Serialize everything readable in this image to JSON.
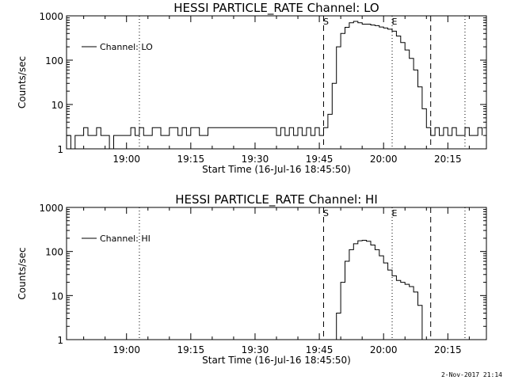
{
  "footer_timestamp": "2-Nov-2017 21:14",
  "chart_data": [
    {
      "type": "line",
      "title": "HESSI PARTICLE_RATE Channel: LO",
      "xlabel": "Start Time (16-Jul-16 18:45:50)",
      "ylabel": "Counts/sec",
      "yscale": "log",
      "ylim": [
        1,
        1000
      ],
      "xlim": [
        "18:46",
        "20:24"
      ],
      "xticks": [
        "19:00",
        "19:15",
        "19:30",
        "19:45",
        "20:00",
        "20:15"
      ],
      "yticks": [
        "1",
        "10",
        "100",
        "1000"
      ],
      "legend": {
        "label": "Channel: LO",
        "position": "top-left"
      },
      "markers": [
        {
          "label": "S",
          "time": "19:46",
          "style": "dashed"
        },
        {
          "label": "E",
          "time": "20:02",
          "style": "dotted"
        },
        {
          "time": "20:11",
          "style": "dashed"
        },
        {
          "time": "19:03",
          "style": "dotted"
        },
        {
          "time": "20:19",
          "style": "dotted"
        }
      ],
      "series": [
        {
          "name": "Channel: LO",
          "points": [
            [
              "18:46",
              2
            ],
            [
              "18:47",
              2
            ],
            [
              "18:47",
              1
            ],
            [
              "18:48",
              2
            ],
            [
              "18:49",
              2
            ],
            [
              "18:50",
              3
            ],
            [
              "18:51",
              2
            ],
            [
              "18:52",
              2
            ],
            [
              "18:53",
              3
            ],
            [
              "18:54",
              2
            ],
            [
              "18:55",
              2
            ],
            [
              "18:56",
              1
            ],
            [
              "18:57",
              2
            ],
            [
              "18:58",
              2
            ],
            [
              "18:59",
              2
            ],
            [
              "19:00",
              2
            ],
            [
              "19:01",
              3
            ],
            [
              "19:02",
              2
            ],
            [
              "19:03",
              3
            ],
            [
              "19:04",
              2
            ],
            [
              "19:05",
              2
            ],
            [
              "19:06",
              3
            ],
            [
              "19:07",
              3
            ],
            [
              "19:08",
              2
            ],
            [
              "19:09",
              2
            ],
            [
              "19:10",
              3
            ],
            [
              "19:11",
              3
            ],
            [
              "19:12",
              2
            ],
            [
              "19:13",
              3
            ],
            [
              "19:14",
              2
            ],
            [
              "19:15",
              3
            ],
            [
              "19:16",
              3
            ],
            [
              "19:17",
              2
            ],
            [
              "19:18",
              2
            ],
            [
              "19:19",
              3
            ],
            [
              "19:20",
              3
            ],
            [
              "19:21",
              3
            ],
            [
              "19:22",
              3
            ],
            [
              "19:23",
              3
            ],
            [
              "19:24",
              3
            ],
            [
              "19:25",
              3
            ],
            [
              "19:26",
              3
            ],
            [
              "19:27",
              3
            ],
            [
              "19:28",
              3
            ],
            [
              "19:29",
              3
            ],
            [
              "19:30",
              3
            ],
            [
              "19:31",
              3
            ],
            [
              "19:32",
              3
            ],
            [
              "19:33",
              3
            ],
            [
              "19:34",
              3
            ],
            [
              "19:35",
              2
            ],
            [
              "19:36",
              3
            ],
            [
              "19:37",
              2
            ],
            [
              "19:38",
              3
            ],
            [
              "19:39",
              2
            ],
            [
              "19:40",
              3
            ],
            [
              "19:41",
              2
            ],
            [
              "19:42",
              3
            ],
            [
              "19:43",
              2
            ],
            [
              "19:44",
              3
            ],
            [
              "19:45",
              2
            ],
            [
              "19:46",
              3
            ],
            [
              "19:47",
              6
            ],
            [
              "19:48",
              30
            ],
            [
              "19:49",
              200
            ],
            [
              "19:50",
              400
            ],
            [
              "19:51",
              550
            ],
            [
              "19:52",
              700
            ],
            [
              "19:53",
              750
            ],
            [
              "19:54",
              700
            ],
            [
              "19:55",
              650
            ],
            [
              "19:56",
              650
            ],
            [
              "19:57",
              620
            ],
            [
              "19:58",
              600
            ],
            [
              "19:59",
              560
            ],
            [
              "20:00",
              530
            ],
            [
              "20:01",
              500
            ],
            [
              "20:02",
              450
            ],
            [
              "20:03",
              350
            ],
            [
              "20:04",
              250
            ],
            [
              "20:05",
              170
            ],
            [
              "20:06",
              110
            ],
            [
              "20:07",
              60
            ],
            [
              "20:08",
              25
            ],
            [
              "20:09",
              8
            ],
            [
              "20:10",
              3
            ],
            [
              "20:11",
              2
            ],
            [
              "20:12",
              3
            ],
            [
              "20:13",
              2
            ],
            [
              "20:14",
              3
            ],
            [
              "20:15",
              2
            ],
            [
              "20:16",
              3
            ],
            [
              "20:17",
              2
            ],
            [
              "20:18",
              2
            ],
            [
              "20:19",
              3
            ],
            [
              "20:20",
              2
            ],
            [
              "20:21",
              2
            ],
            [
              "20:22",
              3
            ],
            [
              "20:23",
              2
            ]
          ]
        }
      ]
    },
    {
      "type": "line",
      "title": "HESSI PARTICLE_RATE Channel: HI",
      "xlabel": "Start Time (16-Jul-16 18:45:50)",
      "ylabel": "Counts/sec",
      "yscale": "log",
      "ylim": [
        1,
        1000
      ],
      "xlim": [
        "18:46",
        "20:24"
      ],
      "xticks": [
        "19:00",
        "19:15",
        "19:30",
        "19:45",
        "20:00",
        "20:15"
      ],
      "yticks": [
        "1",
        "10",
        "100",
        "1000"
      ],
      "legend": {
        "label": "Channel: HI",
        "position": "top-left"
      },
      "markers": [
        {
          "label": "S",
          "time": "19:46",
          "style": "dashed"
        },
        {
          "label": "E",
          "time": "20:02",
          "style": "dotted"
        },
        {
          "time": "20:11",
          "style": "dashed"
        },
        {
          "time": "19:03",
          "style": "dotted"
        },
        {
          "time": "20:19",
          "style": "dotted"
        }
      ],
      "series": [
        {
          "name": "Channel: HI",
          "points": [
            [
              "19:48",
              1
            ],
            [
              "19:49",
              4
            ],
            [
              "19:50",
              20
            ],
            [
              "19:51",
              60
            ],
            [
              "19:52",
              110
            ],
            [
              "19:53",
              150
            ],
            [
              "19:54",
              175
            ],
            [
              "19:55",
              180
            ],
            [
              "19:56",
              170
            ],
            [
              "19:57",
              140
            ],
            [
              "19:58",
              110
            ],
            [
              "19:59",
              80
            ],
            [
              "20:00",
              55
            ],
            [
              "20:01",
              38
            ],
            [
              "20:02",
              28
            ],
            [
              "20:03",
              22
            ],
            [
              "20:04",
              20
            ],
            [
              "20:05",
              18
            ],
            [
              "20:06",
              16
            ],
            [
              "20:07",
              12
            ],
            [
              "20:08",
              6
            ],
            [
              "20:09",
              1
            ]
          ]
        }
      ]
    }
  ]
}
